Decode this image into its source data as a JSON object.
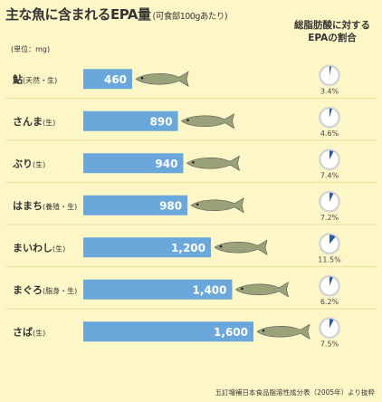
{
  "header": {
    "title": "主な魚に含まれるEPA量",
    "subtitle": "(可食部100gあたり)",
    "unit": "(単位：mg)",
    "right_title_line1": "総脂肪酸に対する",
    "right_title_line2": "EPAの割合"
  },
  "footer": {
    "source": "五訂増補日本食品脂溶性成分表（2005年）より抜粋"
  },
  "colors": {
    "bar": "#6aa8dc",
    "background": "#fdf7c8",
    "row_sep": "#f2e7a6",
    "pie_fill": "#2a5aa0",
    "pie_bg": "#ffffff"
  },
  "chart_data": {
    "type": "bar",
    "title": "主な魚に含まれるEPA量",
    "categories": [
      {
        "name": "鮎",
        "note": "(天然・生)"
      },
      {
        "name": "さんま",
        "note": "(生)"
      },
      {
        "name": "ぶり",
        "note": "(生)"
      },
      {
        "name": "はまち",
        "note": "(養殖・生)"
      },
      {
        "name": "まいわし",
        "note": "(生)"
      },
      {
        "name": "まぐろ",
        "note": "(脂身・生)"
      },
      {
        "name": "さば",
        "note": "(生)"
      }
    ],
    "values": [
      460,
      890,
      940,
      980,
      1200,
      1400,
      1600
    ],
    "value_labels": [
      "460",
      "890",
      "940",
      "980",
      "1,200",
      "1,400",
      "1,600"
    ],
    "xlim": [
      0,
      1600
    ],
    "ylabel": "(単位：mg)",
    "epa_ratio_percent": [
      3.4,
      4.6,
      7.4,
      7.2,
      11.5,
      6.2,
      7.5
    ],
    "epa_ratio_labels": [
      "3.4%",
      "4.6%",
      "7.4%",
      "7.2%",
      "11.5%",
      "6.2%",
      "7.5%"
    ]
  }
}
